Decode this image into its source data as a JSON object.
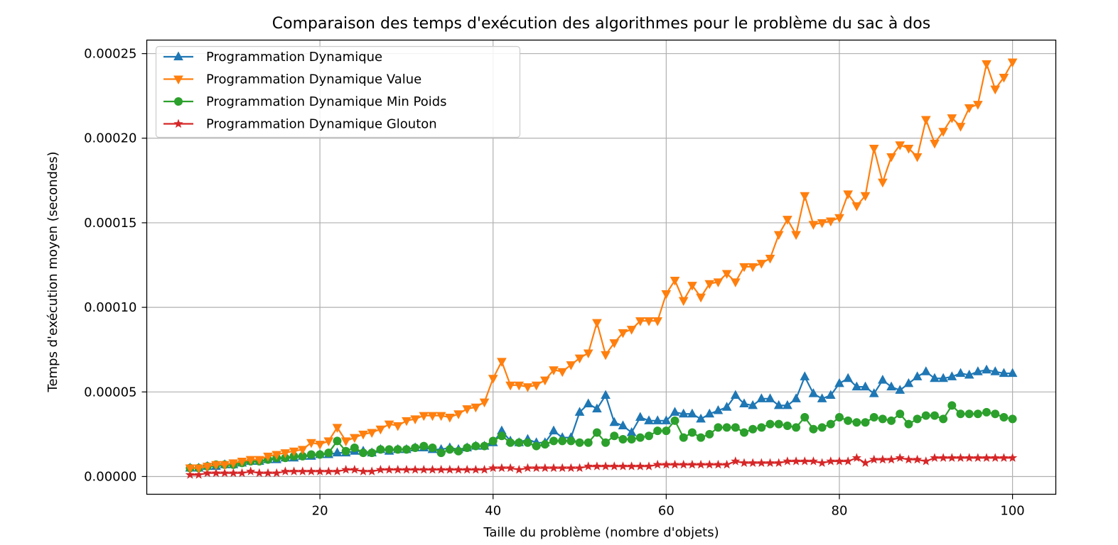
{
  "chart_data": {
    "type": "line",
    "title": "Comparaison des temps d'exécution des algorithmes pour le problème du sac à dos",
    "xlabel": "Taille du problème (nombre d'objets)",
    "ylabel": "Temps d'exécution moyen (secondes)",
    "xlim": [
      0,
      105
    ],
    "ylim": [
      -1.05e-05,
      0.000258
    ],
    "xticks": [
      20,
      40,
      60,
      80,
      100
    ],
    "xtick_labels": [
      "20",
      "40",
      "60",
      "80",
      "100"
    ],
    "yticks": [
      0,
      5e-05,
      0.0001,
      0.00015,
      0.0002,
      0.00025
    ],
    "ytick_labels": [
      "0.00000",
      "0.00005",
      "0.00010",
      "0.00015",
      "0.00020",
      "0.00025"
    ],
    "grid": true,
    "legend_position": "top-left",
    "x": [
      5,
      6,
      7,
      8,
      9,
      10,
      11,
      12,
      13,
      14,
      15,
      16,
      17,
      18,
      19,
      20,
      21,
      22,
      23,
      24,
      25,
      26,
      27,
      28,
      29,
      30,
      31,
      32,
      33,
      34,
      35,
      36,
      37,
      38,
      39,
      40,
      41,
      42,
      43,
      44,
      45,
      46,
      47,
      48,
      49,
      50,
      51,
      52,
      53,
      54,
      55,
      56,
      57,
      58,
      59,
      60,
      61,
      62,
      63,
      64,
      65,
      66,
      67,
      68,
      69,
      70,
      71,
      72,
      73,
      74,
      75,
      76,
      77,
      78,
      79,
      80,
      81,
      82,
      83,
      84,
      85,
      86,
      87,
      88,
      89,
      90,
      91,
      92,
      93,
      94,
      95,
      96,
      97,
      98,
      99,
      100
    ],
    "series": [
      {
        "name": "Programmation Dynamique",
        "color": "#1f77b4",
        "marker": "triangle-up",
        "values": [
          5e-06,
          5e-06,
          6e-06,
          6e-06,
          7e-06,
          7e-06,
          8e-06,
          9e-06,
          9e-06,
          1e-05,
          1e-05,
          1.1e-05,
          1.1e-05,
          1.2e-05,
          1.2e-05,
          1.3e-05,
          1.3e-05,
          1.4e-05,
          1.4e-05,
          1.5e-05,
          1.5e-05,
          1.4e-05,
          1.6e-05,
          1.5e-05,
          1.6e-05,
          1.6e-05,
          1.7e-05,
          1.7e-05,
          1.6e-05,
          1.6e-05,
          1.7e-05,
          1.6e-05,
          1.7e-05,
          1.8e-05,
          1.8e-05,
          2e-05,
          2.7e-05,
          2.1e-05,
          2e-05,
          2.2e-05,
          2e-05,
          2e-05,
          2.7e-05,
          2.3e-05,
          2.3e-05,
          3.8e-05,
          4.3e-05,
          4e-05,
          4.8e-05,
          3.2e-05,
          3e-05,
          2.6e-05,
          3.5e-05,
          3.3e-05,
          3.3e-05,
          3.3e-05,
          3.8e-05,
          3.7e-05,
          3.7e-05,
          3.4e-05,
          3.7e-05,
          3.9e-05,
          4.1e-05,
          4.8e-05,
          4.3e-05,
          4.2e-05,
          4.6e-05,
          4.6e-05,
          4.2e-05,
          4.2e-05,
          4.6e-05,
          5.9e-05,
          4.9e-05,
          4.6e-05,
          4.8e-05,
          5.5e-05,
          5.8e-05,
          5.3e-05,
          5.3e-05,
          4.9e-05,
          5.7e-05,
          5.3e-05,
          5.1e-05,
          5.5e-05,
          5.9e-05,
          6.2e-05,
          5.8e-05,
          5.8e-05,
          5.9e-05,
          6.1e-05,
          6e-05,
          6.2e-05,
          6.3e-05,
          6.2e-05,
          6.1e-05,
          6.1e-05
        ]
      },
      {
        "name": "Programmation Dynamique Value",
        "color": "#ff7f0e",
        "marker": "triangle-down",
        "values": [
          5e-06,
          5e-06,
          6e-06,
          7e-06,
          7e-06,
          8e-06,
          9e-06,
          1e-05,
          1e-05,
          1.2e-05,
          1.3e-05,
          1.4e-05,
          1.5e-05,
          1.6e-05,
          2e-05,
          1.9e-05,
          2.1e-05,
          2.9e-05,
          2.1e-05,
          2.3e-05,
          2.5e-05,
          2.6e-05,
          2.8e-05,
          3.1e-05,
          3e-05,
          3.3e-05,
          3.4e-05,
          3.6e-05,
          3.6e-05,
          3.6e-05,
          3.5e-05,
          3.7e-05,
          4e-05,
          4.1e-05,
          4.4e-05,
          5.8e-05,
          6.8e-05,
          5.4e-05,
          5.4e-05,
          5.3e-05,
          5.4e-05,
          5.7e-05,
          6.3e-05,
          6.2e-05,
          6.6e-05,
          7e-05,
          7.3e-05,
          9.1e-05,
          7.2e-05,
          7.9e-05,
          8.5e-05,
          8.7e-05,
          9.2e-05,
          9.2e-05,
          9.2e-05,
          0.000108,
          0.000116,
          0.000104,
          0.000113,
          0.000106,
          0.000114,
          0.000115,
          0.00012,
          0.000115,
          0.000124,
          0.000124,
          0.000126,
          0.000129,
          0.000143,
          0.000152,
          0.000143,
          0.000166,
          0.000149,
          0.00015,
          0.000151,
          0.000153,
          0.000167,
          0.00016,
          0.000166,
          0.000194,
          0.000174,
          0.000189,
          0.000196,
          0.000194,
          0.000189,
          0.000211,
          0.000197,
          0.000204,
          0.000212,
          0.000207,
          0.000218,
          0.00022,
          0.000244,
          0.000229,
          0.000236,
          0.000245
        ]
      },
      {
        "name": "Programmation Dynamique Min Poids",
        "color": "#2ca02c",
        "marker": "circle",
        "values": [
          5e-06,
          5e-06,
          6e-06,
          7e-06,
          7e-06,
          7e-06,
          8e-06,
          9e-06,
          9e-06,
          1e-05,
          1.1e-05,
          1.1e-05,
          1.2e-05,
          1.2e-05,
          1.3e-05,
          1.3e-05,
          1.4e-05,
          2.1e-05,
          1.5e-05,
          1.7e-05,
          1.4e-05,
          1.4e-05,
          1.6e-05,
          1.6e-05,
          1.6e-05,
          1.6e-05,
          1.7e-05,
          1.8e-05,
          1.7e-05,
          1.4e-05,
          1.6e-05,
          1.5e-05,
          1.7e-05,
          1.8e-05,
          1.8e-05,
          2.1e-05,
          2.4e-05,
          2e-05,
          2e-05,
          2e-05,
          1.8e-05,
          1.9e-05,
          2.1e-05,
          2.1e-05,
          2.1e-05,
          2e-05,
          2e-05,
          2.6e-05,
          2e-05,
          2.4e-05,
          2.2e-05,
          2.2e-05,
          2.3e-05,
          2.4e-05,
          2.7e-05,
          2.7e-05,
          3.3e-05,
          2.3e-05,
          2.6e-05,
          2.3e-05,
          2.5e-05,
          2.9e-05,
          2.9e-05,
          2.9e-05,
          2.6e-05,
          2.8e-05,
          2.9e-05,
          3.1e-05,
          3.1e-05,
          3e-05,
          2.9e-05,
          3.5e-05,
          2.8e-05,
          2.9e-05,
          3.1e-05,
          3.5e-05,
          3.3e-05,
          3.2e-05,
          3.2e-05,
          3.5e-05,
          3.4e-05,
          3.3e-05,
          3.7e-05,
          3.1e-05,
          3.4e-05,
          3.6e-05,
          3.6e-05,
          3.4e-05,
          4.2e-05,
          3.7e-05,
          3.7e-05,
          3.7e-05,
          3.8e-05,
          3.7e-05,
          3.5e-05,
          3.4e-05
        ]
      },
      {
        "name": "Programmation Dynamique Glouton",
        "color": "#d62728",
        "marker": "star",
        "values": [
          1e-06,
          1e-06,
          2e-06,
          2e-06,
          2e-06,
          2e-06,
          2e-06,
          3e-06,
          2e-06,
          2e-06,
          2e-06,
          3e-06,
          3e-06,
          3e-06,
          3e-06,
          3e-06,
          3e-06,
          3e-06,
          4e-06,
          4e-06,
          3e-06,
          3e-06,
          4e-06,
          4e-06,
          4e-06,
          4e-06,
          4e-06,
          4e-06,
          4e-06,
          4e-06,
          4e-06,
          4e-06,
          4e-06,
          4e-06,
          4e-06,
          5e-06,
          5e-06,
          5e-06,
          4e-06,
          5e-06,
          5e-06,
          5e-06,
          5e-06,
          5e-06,
          5e-06,
          5e-06,
          6e-06,
          6e-06,
          6e-06,
          6e-06,
          6e-06,
          6e-06,
          6e-06,
          6e-06,
          7e-06,
          7e-06,
          7e-06,
          7e-06,
          7e-06,
          7e-06,
          7e-06,
          7e-06,
          7e-06,
          9e-06,
          8e-06,
          8e-06,
          8e-06,
          8e-06,
          8e-06,
          9e-06,
          9e-06,
          9e-06,
          9e-06,
          8e-06,
          9e-06,
          9e-06,
          9e-06,
          1.1e-05,
          8e-06,
          1e-05,
          1e-05,
          1e-05,
          1.1e-05,
          1e-05,
          1e-05,
          9e-06,
          1.1e-05,
          1.1e-05,
          1.1e-05,
          1.1e-05,
          1.1e-05,
          1.1e-05,
          1.1e-05,
          1.1e-05,
          1.1e-05,
          1.1e-05
        ]
      }
    ]
  }
}
